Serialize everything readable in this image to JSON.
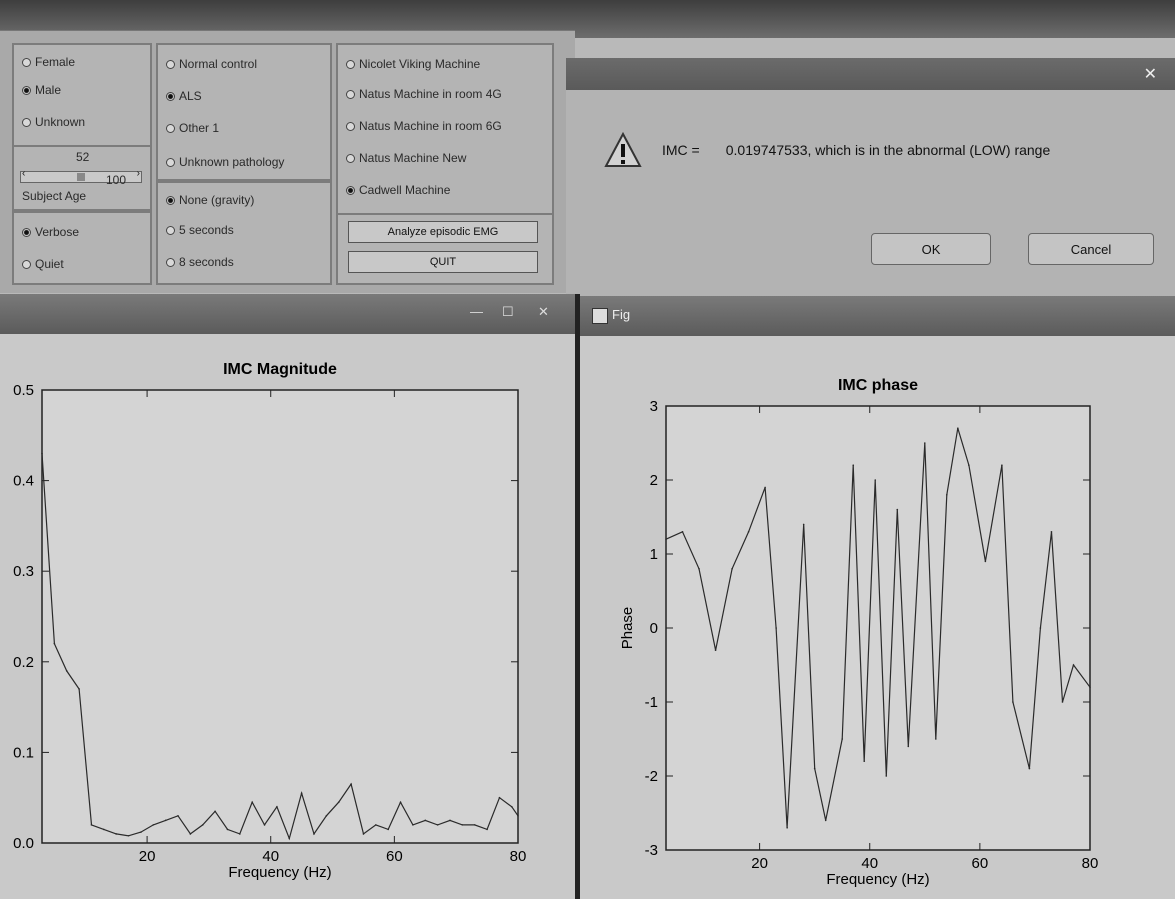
{
  "control_panel": {
    "sex_options": [
      {
        "label": "Female",
        "selected": false
      },
      {
        "label": "Male",
        "selected": true
      },
      {
        "label": "Unknown",
        "selected": false
      }
    ],
    "age_value": "52",
    "age_max": "100",
    "age_label": "Subject Age",
    "verbose_options": [
      {
        "label": "Verbose",
        "selected": true
      },
      {
        "label": "Quiet",
        "selected": false
      }
    ],
    "pathology_options": [
      {
        "label": "Normal control",
        "selected": false
      },
      {
        "label": "ALS",
        "selected": true
      },
      {
        "label": "Other 1",
        "selected": false
      },
      {
        "label": "Unknown pathology",
        "selected": false
      }
    ],
    "epoch_options": [
      {
        "label": "None (gravity)",
        "selected": true
      },
      {
        "label": "5 seconds",
        "selected": false
      },
      {
        "label": "8 seconds",
        "selected": false
      }
    ],
    "machine_options": [
      {
        "label": "Nicolet Viking Machine",
        "selected": false
      },
      {
        "label": "Natus Machine in room 4G",
        "selected": false
      },
      {
        "label": "Natus Machine in room 6G",
        "selected": false
      },
      {
        "label": "Natus Machine New",
        "selected": false
      },
      {
        "label": "Cadwell Machine",
        "selected": true
      }
    ],
    "analyze_button": "Analyze episodic EMG",
    "quit_button": "QUIT"
  },
  "dialog": {
    "message_key": "IMC =",
    "message_value": "0.019747533, which is in the abnormal (LOW) range",
    "ok_button": "OK",
    "cancel_button": "Cancel"
  },
  "phase_window": {
    "title": "Fig"
  },
  "colors": {
    "plot_line": "#2a2a2a",
    "plot_bg": "#d4d4d4"
  },
  "chart_data": [
    {
      "type": "line",
      "title": "IMC Magnitude",
      "xlabel": "Frequency (Hz)",
      "ylabel": "",
      "xlim": [
        3,
        80
      ],
      "ylim": [
        0,
        0.5
      ],
      "xticks": [
        20,
        40,
        60,
        80
      ],
      "yticks": [
        0.0,
        0.1,
        0.2,
        0.3,
        0.4,
        0.5
      ],
      "ytick_labels": [
        "0.0",
        "0.1",
        "0.2",
        "0.3",
        "0.4",
        "0.5"
      ],
      "grid": false,
      "x": [
        3,
        5,
        7,
        9,
        11,
        13,
        15,
        17,
        19,
        21,
        23,
        25,
        27,
        29,
        31,
        33,
        35,
        37,
        39,
        41,
        43,
        45,
        47,
        49,
        51,
        53,
        55,
        57,
        59,
        61,
        63,
        65,
        67,
        69,
        71,
        73,
        75,
        77,
        79,
        80
      ],
      "y": [
        0.43,
        0.22,
        0.19,
        0.17,
        0.02,
        0.015,
        0.01,
        0.008,
        0.012,
        0.02,
        0.025,
        0.03,
        0.01,
        0.02,
        0.035,
        0.015,
        0.01,
        0.045,
        0.02,
        0.04,
        0.005,
        0.055,
        0.01,
        0.03,
        0.045,
        0.065,
        0.01,
        0.02,
        0.015,
        0.045,
        0.02,
        0.025,
        0.02,
        0.025,
        0.02,
        0.02,
        0.015,
        0.05,
        0.04,
        0.03
      ]
    },
    {
      "type": "line",
      "title": "IMC phase",
      "xlabel": "Frequency (Hz)",
      "ylabel": "Phase",
      "xlim": [
        3,
        80
      ],
      "ylim": [
        -3,
        3
      ],
      "xticks": [
        20,
        40,
        60,
        80
      ],
      "yticks": [
        -3,
        -2,
        -1,
        0,
        1,
        2,
        3
      ],
      "ytick_labels": [
        "-3",
        "-2",
        "-1",
        "0",
        "1",
        "2",
        "3"
      ],
      "grid": false,
      "x": [
        3,
        6,
        9,
        12,
        15,
        18,
        21,
        23,
        25,
        28,
        30,
        32,
        35,
        37,
        39,
        41,
        43,
        45,
        47,
        50,
        52,
        54,
        56,
        58,
        61,
        64,
        66,
        69,
        71,
        73,
        75,
        77,
        80
      ],
      "y": [
        1.2,
        1.3,
        0.8,
        -0.3,
        0.8,
        1.3,
        1.9,
        0.0,
        -2.7,
        1.4,
        -1.9,
        -2.6,
        -1.5,
        2.2,
        -1.8,
        2.0,
        -2.0,
        1.6,
        -1.6,
        2.5,
        -1.5,
        1.8,
        2.7,
        2.2,
        0.9,
        2.2,
        -1.0,
        -1.9,
        0.0,
        1.3,
        -1.0,
        -0.5,
        -0.8
      ]
    }
  ]
}
